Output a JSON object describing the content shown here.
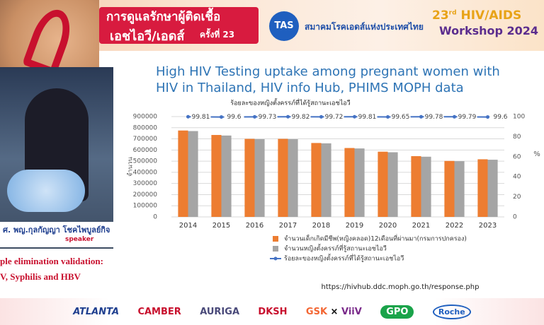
{
  "header": {
    "title_line1": "การดูแลรักษาผู้ติดเชื้อ",
    "title_line2": "เอชไอวี/เอดส์",
    "edition": "ครั้งที่ 23",
    "logo": "TAS",
    "association": "สมาคมโรคเอดส์แห่งประเทศไทย",
    "workshop_number": "23",
    "workshop_suffix": "rd",
    "workshop_name": "HIV/AIDS",
    "workshop_year": "Workshop 2024"
  },
  "speaker": {
    "name": "ศ. พญ.กุลกัญญา โชคไพบูลย์กิจ",
    "role": "speaker"
  },
  "side_text": [
    "ple elimination validation:",
    "V, Syphilis and HBV"
  ],
  "chart_data": {
    "type": "bar",
    "title": "High HIV Testing uptake among pregnant women with HIV in Thailand, HIV info Hub, PHIMS MOPH data",
    "subtitle": "ร้อยละของหญิงตั้งครรภ์ที่ได้รู้สถานะเอชไอวี",
    "categories": [
      "2014",
      "2015",
      "2016",
      "2017",
      "2018",
      "2019",
      "2020",
      "2021",
      "2022",
      "2023"
    ],
    "series": [
      {
        "name": "จำนวนเด็กเกิดมีชีพ(หญิงคลอด)12เดือนที่ผ่านมา(กรมการปกครอง)",
        "color": "#ed7d31",
        "values": [
          775000,
          735000,
          700000,
          700000,
          663000,
          618000,
          585000,
          545000,
          502000,
          517000
        ]
      },
      {
        "name": "จำนวนหญิงตั้งครรภ์ที่รู้สถานะเอชไอวี",
        "color": "#a5a5a5",
        "values": [
          770000,
          730000,
          697000,
          697000,
          660000,
          614000,
          580000,
          540000,
          500000,
          513000
        ]
      },
      {
        "name": "ร้อยละของหญิงตั้งครรภ์ที่ได้รู้สถานะเอชไอวี",
        "color": "#4472c4",
        "type": "line",
        "axis": "y2",
        "values": [
          99.81,
          99.6,
          99.73,
          99.82,
          99.72,
          99.81,
          99.65,
          99.78,
          99.79,
          99.6
        ]
      }
    ],
    "ylim": [
      0,
      900000
    ],
    "yticks": [
      0,
      100000,
      200000,
      300000,
      400000,
      500000,
      600000,
      700000,
      800000,
      900000
    ],
    "y2lim": [
      0,
      100
    ],
    "y2ticks": [
      0,
      20,
      40,
      60,
      80,
      100
    ],
    "ylabel": "จำนวน",
    "y2label": "%",
    "grid": true,
    "legend": "bottom",
    "source": "https://hivhub.ddc.moph.go.th/response.php"
  },
  "sponsors": [
    "ATLANTA",
    "CAMBER",
    "AURIGA",
    "DKSH",
    "GSK",
    "ViiV",
    "GPO",
    "Roche"
  ]
}
